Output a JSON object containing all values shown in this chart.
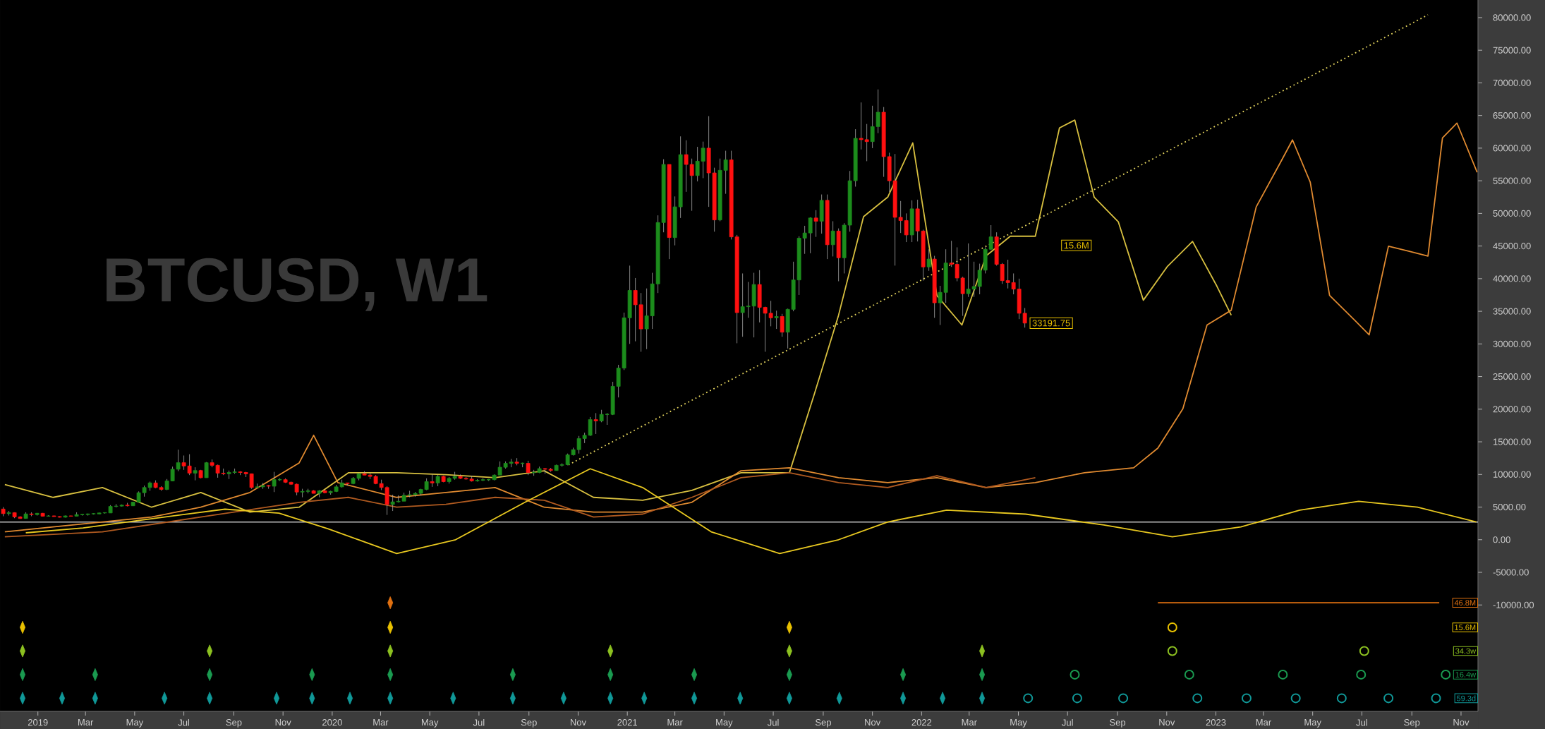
{
  "chart_data": {
    "type": "candlestick",
    "title": "BTCUSD, W1",
    "x": [
      "2018-11-19",
      "2018-11-26",
      "2018-12-03",
      "2018-12-10",
      "2018-12-17",
      "2018-12-24",
      "2018-12-31",
      "2019-01-07",
      "2019-01-14",
      "2019-01-21",
      "2019-01-28",
      "2019-02-04",
      "2019-02-11",
      "2019-02-18",
      "2019-02-25",
      "2019-03-04",
      "2019-03-11",
      "2019-03-18",
      "2019-03-25",
      "2019-04-01",
      "2019-04-08",
      "2019-04-15",
      "2019-04-22",
      "2019-04-29",
      "2019-05-06",
      "2019-05-13",
      "2019-05-20",
      "2019-05-27",
      "2019-06-03",
      "2019-06-10",
      "2019-06-17",
      "2019-06-24",
      "2019-07-01",
      "2019-07-08",
      "2019-07-15",
      "2019-07-22",
      "2019-07-29",
      "2019-08-05",
      "2019-08-12",
      "2019-08-19",
      "2019-08-26",
      "2019-09-02",
      "2019-09-09",
      "2019-09-16",
      "2019-09-23",
      "2019-09-30",
      "2019-10-07",
      "2019-10-14",
      "2019-10-21",
      "2019-10-28",
      "2019-11-04",
      "2019-11-11",
      "2019-11-18",
      "2019-11-25",
      "2019-12-02",
      "2019-12-09",
      "2019-12-16",
      "2019-12-23",
      "2019-12-30",
      "2020-01-06",
      "2020-01-13",
      "2020-01-20",
      "2020-01-27",
      "2020-02-03",
      "2020-02-10",
      "2020-02-17",
      "2020-02-24",
      "2020-03-02",
      "2020-03-09",
      "2020-03-16",
      "2020-03-23",
      "2020-03-30",
      "2020-04-06",
      "2020-04-13",
      "2020-04-20",
      "2020-04-27",
      "2020-05-04",
      "2020-05-11",
      "2020-05-18",
      "2020-05-25",
      "2020-06-01",
      "2020-06-08",
      "2020-06-15",
      "2020-06-22",
      "2020-06-29",
      "2020-07-06",
      "2020-07-13",
      "2020-07-20",
      "2020-07-27",
      "2020-08-03",
      "2020-08-10",
      "2020-08-17",
      "2020-08-24",
      "2020-08-31",
      "2020-09-07",
      "2020-09-14",
      "2020-09-21",
      "2020-09-28",
      "2020-10-05",
      "2020-10-12",
      "2020-10-19",
      "2020-10-26",
      "2020-11-02",
      "2020-11-09",
      "2020-11-16",
      "2020-11-23",
      "2020-11-30",
      "2020-12-07",
      "2020-12-14",
      "2020-12-21",
      "2020-12-28",
      "2021-01-04",
      "2021-01-11",
      "2021-01-18",
      "2021-01-25",
      "2021-02-01",
      "2021-02-08",
      "2021-02-15",
      "2021-02-22",
      "2021-03-01",
      "2021-03-08",
      "2021-03-15",
      "2021-03-22",
      "2021-03-29",
      "2021-04-05",
      "2021-04-12",
      "2021-04-19",
      "2021-04-26",
      "2021-05-03",
      "2021-05-10",
      "2021-05-17",
      "2021-05-24",
      "2021-05-31",
      "2021-06-07",
      "2021-06-14",
      "2021-06-21",
      "2021-06-28",
      "2021-07-05",
      "2021-07-12",
      "2021-07-19",
      "2021-07-26",
      "2021-08-02",
      "2021-08-09",
      "2021-08-16",
      "2021-08-23",
      "2021-08-30",
      "2021-09-06",
      "2021-09-13",
      "2021-09-20",
      "2021-09-27",
      "2021-10-04",
      "2021-10-11",
      "2021-10-18",
      "2021-10-25",
      "2021-11-01",
      "2021-11-08",
      "2021-11-15",
      "2021-11-22",
      "2021-11-29",
      "2021-12-06",
      "2021-12-13",
      "2021-12-20",
      "2021-12-27",
      "2022-01-03",
      "2022-01-10",
      "2022-01-17",
      "2022-01-24",
      "2022-01-31",
      "2022-02-07",
      "2022-02-14",
      "2022-02-21",
      "2022-02-28",
      "2022-03-07",
      "2022-03-14",
      "2022-03-21",
      "2022-03-28",
      "2022-04-04",
      "2022-04-11",
      "2022-04-18",
      "2022-04-25",
      "2022-05-02",
      "2022-05-09"
    ],
    "ohlc": [
      [
        4700,
        5000,
        3600,
        4000
      ],
      [
        4000,
        4400,
        3700,
        4150
      ],
      [
        4150,
        4200,
        3300,
        3500
      ],
      [
        3500,
        3600,
        3200,
        3250
      ],
      [
        3250,
        4200,
        3250,
        3950
      ],
      [
        3950,
        4200,
        3600,
        3850
      ],
      [
        3850,
        4100,
        3700,
        4050
      ],
      [
        4050,
        4100,
        3550,
        3600
      ],
      [
        3600,
        3750,
        3550,
        3650
      ],
      [
        3650,
        3700,
        3500,
        3550
      ],
      [
        3550,
        3600,
        3400,
        3450
      ],
      [
        3450,
        3700,
        3400,
        3650
      ],
      [
        3650,
        3700,
        3550,
        3600
      ],
      [
        3600,
        4200,
        3600,
        3850
      ],
      [
        3850,
        3900,
        3700,
        3850
      ],
      [
        3850,
        4000,
        3700,
        3950
      ],
      [
        3950,
        4050,
        3850,
        4000
      ],
      [
        3950,
        4150,
        3900,
        4100
      ],
      [
        4100,
        4200,
        4000,
        4150
      ],
      [
        4100,
        5300,
        4100,
        5100
      ],
      [
        5100,
        5450,
        4950,
        5150
      ],
      [
        5150,
        5400,
        5100,
        5300
      ],
      [
        5300,
        5650,
        5100,
        5200
      ],
      [
        5200,
        5800,
        5150,
        5750
      ],
      [
        5750,
        7400,
        5750,
        7200
      ],
      [
        7200,
        8300,
        6600,
        8000
      ],
      [
        8000,
        8900,
        7500,
        8700
      ],
      [
        8700,
        9100,
        7900,
        8000
      ],
      [
        8000,
        8200,
        7500,
        7700
      ],
      [
        7700,
        9300,
        7600,
        9000
      ],
      [
        9000,
        11200,
        9000,
        10800
      ],
      [
        10800,
        13800,
        10500,
        11800
      ],
      [
        11800,
        12900,
        10700,
        11300
      ],
      [
        11300,
        13100,
        9900,
        10200
      ],
      [
        10200,
        11100,
        9100,
        10600
      ],
      [
        10600,
        10700,
        9400,
        9500
      ],
      [
        9500,
        11900,
        9500,
        11800
      ],
      [
        11800,
        12300,
        11100,
        11400
      ],
      [
        11400,
        11500,
        9500,
        10200
      ],
      [
        10200,
        10900,
        9900,
        10100
      ],
      [
        10100,
        10600,
        9300,
        10300
      ],
      [
        10300,
        10900,
        10100,
        10400
      ],
      [
        10400,
        10500,
        9900,
        10300
      ],
      [
        10300,
        10400,
        9600,
        10100
      ],
      [
        10100,
        10100,
        7800,
        8000
      ],
      [
        8000,
        8600,
        7900,
        8100
      ],
      [
        8100,
        8700,
        7800,
        8300
      ],
      [
        8300,
        8400,
        7800,
        8200
      ],
      [
        8200,
        10400,
        7300,
        9200
      ],
      [
        9200,
        9400,
        9000,
        9200
      ],
      [
        9200,
        9400,
        8700,
        8800
      ],
      [
        8800,
        8900,
        8400,
        8500
      ],
      [
        8500,
        8600,
        6800,
        7300
      ],
      [
        7300,
        7800,
        6500,
        7400
      ],
      [
        7400,
        7800,
        7100,
        7500
      ],
      [
        7500,
        7600,
        7100,
        7100
      ],
      [
        7100,
        7600,
        6500,
        7500
      ],
      [
        7500,
        7700,
        7100,
        7200
      ],
      [
        7200,
        7500,
        6900,
        7400
      ],
      [
        7400,
        8400,
        7300,
        8100
      ],
      [
        8100,
        9200,
        8000,
        8700
      ],
      [
        8700,
        8700,
        8300,
        8600
      ],
      [
        8600,
        9600,
        8500,
        9400
      ],
      [
        9400,
        10200,
        9100,
        10100
      ],
      [
        10100,
        10500,
        9900,
        9900
      ],
      [
        9900,
        10200,
        9300,
        9700
      ],
      [
        9700,
        9900,
        8500,
        8600
      ],
      [
        8600,
        9200,
        7600,
        8000
      ],
      [
        8000,
        8200,
        3800,
        5400
      ],
      [
        5400,
        6900,
        4400,
        5800
      ],
      [
        5800,
        6800,
        5700,
        5900
      ],
      [
        5900,
        7200,
        5900,
        6800
      ],
      [
        6800,
        7500,
        6500,
        6900
      ],
      [
        6900,
        7300,
        6600,
        7100
      ],
      [
        7100,
        7800,
        6800,
        7700
      ],
      [
        7700,
        9400,
        7600,
        8900
      ],
      [
        8900,
        10000,
        8100,
        8700
      ],
      [
        8700,
        9900,
        8200,
        9700
      ],
      [
        9700,
        9800,
        8800,
        8900
      ],
      [
        8900,
        9600,
        8600,
        9400
      ],
      [
        9400,
        10400,
        9200,
        9700
      ],
      [
        9700,
        10000,
        9300,
        9400
      ],
      [
        9400,
        9600,
        9200,
        9300
      ],
      [
        9300,
        9800,
        8900,
        9000
      ],
      [
        9000,
        9300,
        8900,
        9100
      ],
      [
        9100,
        9400,
        9000,
        9200
      ],
      [
        9200,
        9300,
        9000,
        9200
      ],
      [
        9200,
        10000,
        9100,
        9900
      ],
      [
        9900,
        12000,
        9900,
        11100
      ],
      [
        11100,
        12000,
        10900,
        11700
      ],
      [
        11700,
        12400,
        11100,
        11900
      ],
      [
        11900,
        12500,
        11400,
        11700
      ],
      [
        11700,
        11800,
        11100,
        11700
      ],
      [
        11700,
        12100,
        9900,
        10300
      ],
      [
        10300,
        10700,
        9800,
        10300
      ],
      [
        10300,
        11200,
        10200,
        10900
      ],
      [
        10900,
        11000,
        10100,
        10800
      ],
      [
        10800,
        11000,
        10400,
        10600
      ],
      [
        10600,
        11500,
        10600,
        11400
      ],
      [
        11400,
        11700,
        11200,
        11500
      ],
      [
        11500,
        13200,
        11400,
        13000
      ],
      [
        13000,
        14100,
        12900,
        13800
      ],
      [
        13800,
        15900,
        13200,
        15500
      ],
      [
        15500,
        16400,
        14800,
        16000
      ],
      [
        16000,
        18800,
        15900,
        18400
      ],
      [
        18400,
        19400,
        16200,
        18200
      ],
      [
        18200,
        19900,
        18000,
        19200
      ],
      [
        19200,
        19400,
        17600,
        19200
      ],
      [
        19200,
        24200,
        19100,
        23500
      ],
      [
        23500,
        26800,
        21800,
        26300
      ],
      [
        26300,
        34800,
        26000,
        34000
      ],
      [
        34000,
        42000,
        30000,
        38200
      ],
      [
        38200,
        40100,
        30400,
        36000
      ],
      [
        36000,
        37800,
        28800,
        32300
      ],
      [
        32300,
        38500,
        29200,
        34300
      ],
      [
        34300,
        40900,
        32300,
        39200
      ],
      [
        39200,
        49700,
        37800,
        48600
      ],
      [
        48600,
        58300,
        47100,
        57500
      ],
      [
        57500,
        57500,
        43000,
        46300
      ],
      [
        46300,
        52600,
        45100,
        51000
      ],
      [
        51000,
        61800,
        49300,
        59000
      ],
      [
        59000,
        61200,
        53300,
        57500
      ],
      [
        57500,
        58400,
        50400,
        55800
      ],
      [
        55800,
        60200,
        54900,
        58000
      ],
      [
        58000,
        61000,
        55400,
        60000
      ],
      [
        60000,
        64900,
        51000,
        56200
      ],
      [
        56200,
        57000,
        47200,
        49000
      ],
      [
        49000,
        58400,
        48800,
        56600
      ],
      [
        56600,
        59600,
        53000,
        58200
      ],
      [
        58200,
        59600,
        46000,
        46400
      ],
      [
        46400,
        46700,
        30100,
        34800
      ],
      [
        34800,
        40800,
        31100,
        35700
      ],
      [
        35700,
        39500,
        34000,
        35800
      ],
      [
        35800,
        40900,
        31000,
        39100
      ],
      [
        39100,
        41300,
        33300,
        35600
      ],
      [
        35600,
        35700,
        28800,
        34700
      ],
      [
        34700,
        36600,
        32700,
        34000
      ],
      [
        34000,
        35100,
        32300,
        34200
      ],
      [
        34200,
        34600,
        31100,
        31800
      ],
      [
        31800,
        35400,
        29300,
        35300
      ],
      [
        35300,
        42600,
        35000,
        39800
      ],
      [
        39800,
        46500,
        37500,
        46200
      ],
      [
        46200,
        48100,
        43800,
        47000
      ],
      [
        47000,
        49400,
        43900,
        49300
      ],
      [
        49300,
        50500,
        46400,
        48800
      ],
      [
        48800,
        52900,
        46900,
        52000
      ],
      [
        52000,
        52900,
        43000,
        45200
      ],
      [
        45200,
        48800,
        43400,
        47300
      ],
      [
        47300,
        47700,
        39600,
        43200
      ],
      [
        43200,
        48500,
        40800,
        48200
      ],
      [
        48200,
        56500,
        47200,
        55000
      ],
      [
        55000,
        62900,
        54100,
        61500
      ],
      [
        61500,
        67000,
        59800,
        61300
      ],
      [
        61300,
        63700,
        58000,
        61000
      ],
      [
        61000,
        66500,
        60000,
        63300
      ],
      [
        63300,
        69000,
        62300,
        65500
      ],
      [
        65500,
        66300,
        55600,
        58700
      ],
      [
        58700,
        59300,
        53300,
        55000
      ],
      [
        55000,
        59100,
        42000,
        49400
      ],
      [
        49400,
        51900,
        47000,
        48900
      ],
      [
        48900,
        50000,
        45600,
        46700
      ],
      [
        46700,
        52000,
        45600,
        50700
      ],
      [
        50700,
        52100,
        45700,
        47300
      ],
      [
        47300,
        47500,
        39700,
        41800
      ],
      [
        41800,
        44500,
        41200,
        43000
      ],
      [
        43000,
        43500,
        34000,
        36300
      ],
      [
        36300,
        38900,
        32900,
        37900
      ],
      [
        37900,
        44500,
        36300,
        42400
      ],
      [
        42400,
        45800,
        41800,
        42200
      ],
      [
        42200,
        44800,
        39600,
        40100
      ],
      [
        40100,
        40300,
        34300,
        37700
      ],
      [
        37700,
        45400,
        37200,
        38400
      ],
      [
        38400,
        42600,
        37200,
        38800
      ],
      [
        38800,
        42300,
        37600,
        41300
      ],
      [
        41300,
        44800,
        40800,
        44500
      ],
      [
        44500,
        48200,
        44400,
        46400
      ],
      [
        46400,
        47100,
        42000,
        42200
      ],
      [
        42200,
        42400,
        39200,
        39700
      ],
      [
        39700,
        42900,
        38500,
        39400
      ],
      [
        39400,
        40800,
        37600,
        38400
      ],
      [
        38400,
        40000,
        33800,
        34700
      ],
      [
        34700,
        35500,
        32500,
        33191.75
      ]
    ],
    "series": [
      {
        "type": "line",
        "color": "#d8c040",
        "x": [
          "2018-11-21",
          "2019-01-20",
          "2019-03-22",
          "2019-05-22",
          "2019-07-22",
          "2019-09-21",
          "2019-11-21",
          "2020-01-21",
          "2020-03-21",
          "2020-05-21",
          "2020-07-21",
          "2020-09-20",
          "2020-11-20",
          "2021-01-20",
          "2021-03-22",
          "2021-05-22",
          "2021-07-21",
          "2021-08-21",
          "2021-09-20",
          "2021-10-21",
          "2021-11-20",
          "2021-12-21",
          "2022-01-20",
          "2022-02-20",
          "2022-03-22",
          "2022-04-21",
          "2022-05-22",
          "2022-06-21",
          "2022-07-10",
          "2022-08-03",
          "2022-09-02",
          "2022-10-03",
          "2022-11-02",
          "2022-12-03",
          "2023-01-02",
          "2023-01-20"
        ],
        "values": [
          8450,
          6490,
          8000,
          4980,
          7240,
          4230,
          4980,
          10260,
          10260,
          9960,
          9500,
          10560,
          6490,
          6040,
          7550,
          10260,
          10260,
          22330,
          34400,
          49500,
          52500,
          60800,
          37400,
          32900,
          43500,
          46500,
          46500,
          63100,
          64300,
          52500,
          48700,
          36700,
          41900,
          45700,
          38900,
          34400
        ]
      },
      {
        "type": "line",
        "color": "#e08a30",
        "x": [
          "2018-11-21",
          "2019-01-20",
          "2019-03-22",
          "2019-05-22",
          "2019-07-22",
          "2019-09-21",
          "2019-11-21",
          "2019-12-09",
          "2020-01-08",
          "2020-03-21",
          "2020-05-21",
          "2020-07-21",
          "2020-09-20",
          "2020-11-20",
          "2021-01-20",
          "2021-03-22",
          "2021-05-22",
          "2021-07-21",
          "2021-09-20",
          "2021-11-20",
          "2022-01-20",
          "2022-03-22",
          "2022-05-22",
          "2022-07-22",
          "2022-09-21",
          "2022-10-21",
          "2022-11-21",
          "2022-12-21",
          "2023-01-20",
          "2023-02-20",
          "2023-03-22",
          "2023-04-06",
          "2023-04-28",
          "2023-05-22",
          "2023-06-22",
          "2023-07-10",
          "2023-08-03",
          "2023-08-28",
          "2023-09-21",
          "2023-10-09",
          "2023-10-27",
          "2023-11-21"
        ],
        "values": [
          1210,
          1960,
          2720,
          3470,
          4980,
          7240,
          11770,
          16000,
          8750,
          6490,
          7240,
          8000,
          4980,
          4230,
          4230,
          5730,
          10560,
          11020,
          9500,
          8750,
          9500,
          8000,
          8750,
          10260,
          11020,
          14030,
          20070,
          32900,
          35160,
          51000,
          57800,
          61260,
          54780,
          37420,
          33650,
          31390,
          44970,
          44210,
          43460,
          61570,
          63830,
          56290
        ]
      },
      {
        "type": "line",
        "color": "#b05a20",
        "x": [
          "2018-11-21",
          "2019-03-22",
          "2019-07-22",
          "2019-11-21",
          "2020-01-21",
          "2020-03-21",
          "2020-05-21",
          "2020-07-21",
          "2020-09-20",
          "2020-11-20",
          "2021-01-20",
          "2021-03-22",
          "2021-05-22",
          "2021-07-21",
          "2021-09-20",
          "2021-11-20",
          "2022-01-20",
          "2022-03-22",
          "2022-05-22"
        ],
        "values": [
          450,
          1210,
          3470,
          5730,
          6490,
          4980,
          5430,
          6490,
          6040,
          3470,
          3920,
          6490,
          9500,
          10260,
          8750,
          8000,
          9810,
          8000,
          9500
        ]
      },
      {
        "type": "line",
        "color": "#e8c820",
        "x": [
          "2018-12-17",
          "2019-02-26",
          "2019-05-10",
          "2019-08-21",
          "2019-10-27",
          "2019-12-27",
          "2020-03-21",
          "2020-06-02",
          "2020-08-27",
          "2020-11-16",
          "2021-01-20",
          "2021-04-15",
          "2021-07-09",
          "2021-09-20",
          "2021-11-20",
          "2022-02-01",
          "2022-05-10",
          "2022-08-15",
          "2022-11-08",
          "2023-02-01",
          "2023-04-15",
          "2023-06-27",
          "2023-09-08",
          "2023-11-20"
        ],
        "values": [
          1057,
          1810,
          3020,
          4680,
          4080,
          1660,
          -2110,
          0,
          5730,
          10870,
          8000,
          1210,
          -2110,
          0,
          2720,
          4530,
          3920,
          2260,
          450,
          1960,
          4530,
          5890,
          4980,
          2720
        ]
      },
      {
        "type": "line",
        "color": "#e8d860",
        "line_style": "dotted",
        "x": [
          "2020-10-20",
          "2023-09-21"
        ],
        "values": [
          11470,
          80420
        ]
      },
      {
        "type": "scatter",
        "marker": "diamond",
        "color": "#e07010",
        "x": [
          "2020-03-13"
        ],
        "values": [
          -9660
        ]
      },
      {
        "type": "scatter",
        "marker": "diamond",
        "color": "#e8c000",
        "x": [
          "2018-12-13",
          "2020-03-13",
          "2021-07-21"
        ],
        "values": [
          -13430,
          -13430,
          -13430
        ]
      },
      {
        "type": "scatter",
        "marker": "diamond",
        "color": "#8cc020",
        "x": [
          "2018-12-13",
          "2019-08-02",
          "2020-03-13",
          "2020-12-11",
          "2021-07-21",
          "2022-03-17"
        ],
        "values": [
          -17050,
          -17050,
          -17050,
          -17050,
          -17050,
          -17050
        ]
      },
      {
        "type": "scatter",
        "marker": "diamond",
        "color": "#1a9a50",
        "x": [
          "2018-12-13",
          "2019-03-13",
          "2019-08-02",
          "2019-12-07",
          "2020-03-13",
          "2020-08-12",
          "2020-12-11",
          "2021-03-25",
          "2021-07-21",
          "2021-12-09",
          "2022-03-17"
        ],
        "values": [
          -20670,
          -20670,
          -20670,
          -20670,
          -20670,
          -20670,
          -20670,
          -20670,
          -20670,
          -20670,
          -20670
        ]
      },
      {
        "type": "scatter",
        "marker": "diamond",
        "color": "#109898",
        "x": [
          "2018-12-13",
          "2019-01-31",
          "2019-03-13",
          "2019-06-07",
          "2019-08-02",
          "2019-10-24",
          "2019-12-07",
          "2020-01-23",
          "2020-03-13",
          "2020-05-30",
          "2020-08-12",
          "2020-10-14",
          "2020-12-11",
          "2021-01-22",
          "2021-03-25",
          "2021-05-21",
          "2021-07-21",
          "2021-09-21",
          "2021-12-09",
          "2022-01-27",
          "2022-03-17"
        ],
        "values": [
          -24290,
          -24290,
          -24290,
          -24290,
          -24290,
          -24290,
          -24290,
          -24290,
          -24290,
          -24290,
          -24290,
          -24290,
          -24290,
          -24290,
          -24290,
          -24290,
          -24290,
          -24290,
          -24290,
          -24290,
          -24290
        ]
      },
      {
        "type": "line",
        "name": "46.8M",
        "color": "#e07010",
        "x": [
          "2022-10-21",
          "2023-10-05"
        ],
        "values": [
          -9660,
          -9660
        ]
      },
      {
        "type": "scatter",
        "marker": "circle",
        "name": "15.6M",
        "color": "#e8c000",
        "x": [
          "2022-11-08"
        ],
        "values": [
          -13430
        ]
      },
      {
        "type": "scatter",
        "marker": "circle",
        "name": "34.3w",
        "color": "#8cc020",
        "x": [
          "2022-11-08",
          "2023-07-04"
        ],
        "values": [
          -17050,
          -17050
        ]
      },
      {
        "type": "scatter",
        "marker": "circle",
        "name": "16.4w",
        "color": "#1a9a50",
        "x": [
          "2022-07-10",
          "2022-11-29",
          "2023-03-25",
          "2023-06-30",
          "2023-10-13"
        ],
        "values": [
          -20670,
          -20670,
          -20670,
          -20670,
          -20670
        ]
      },
      {
        "type": "scatter",
        "marker": "circle",
        "name": "59.3d",
        "color": "#109898",
        "x": [
          "2022-05-13",
          "2022-07-13",
          "2022-09-08",
          "2022-12-09",
          "2023-02-08",
          "2023-04-10",
          "2023-06-06",
          "2023-08-03",
          "2023-10-01"
        ],
        "values": [
          -24290,
          -24290,
          -24290,
          -24290,
          -24290,
          -24290,
          -24290,
          -24290,
          -24290
        ]
      }
    ],
    "ref_lines": [
      {
        "axis": "y",
        "value": 2700,
        "color": "#ffffff"
      }
    ],
    "annotations": [
      "15.6M",
      {
        "text": "33191.75",
        "x": "2022-05-09",
        "y": 33191.75
      }
    ],
    "xlim": [
      "2018-11-15",
      "2023-11-22"
    ],
    "ylim": [
      -26300,
      82700
    ],
    "xticks": [
      {
        "value": "2019-01-01",
        "label": "2019"
      },
      {
        "value": "2019-03-01",
        "label": "Mar"
      },
      {
        "value": "2019-05-01",
        "label": "May"
      },
      {
        "value": "2019-07-01",
        "label": "Jul"
      },
      {
        "value": "2019-09-01",
        "label": "Sep"
      },
      {
        "value": "2019-11-01",
        "label": "Nov"
      },
      {
        "value": "2020-01-01",
        "label": "2020"
      },
      {
        "value": "2020-03-01",
        "label": "Mar"
      },
      {
        "value": "2020-05-01",
        "label": "May"
      },
      {
        "value": "2020-07-01",
        "label": "Jul"
      },
      {
        "value": "2020-09-01",
        "label": "Sep"
      },
      {
        "value": "2020-11-01",
        "label": "Nov"
      },
      {
        "value": "2021-01-01",
        "label": "2021"
      },
      {
        "value": "2021-03-01",
        "label": "Mar"
      },
      {
        "value": "2021-05-01",
        "label": "May"
      },
      {
        "value": "2021-07-01",
        "label": "Jul"
      },
      {
        "value": "2021-09-01",
        "label": "Sep"
      },
      {
        "value": "2021-11-01",
        "label": "Nov"
      },
      {
        "value": "2022-01-01",
        "label": "2022"
      },
      {
        "value": "2022-03-01",
        "label": "Mar"
      },
      {
        "value": "2022-05-01",
        "label": "May"
      },
      {
        "value": "2022-07-01",
        "label": "Jul"
      },
      {
        "value": "2022-09-01",
        "label": "Sep"
      },
      {
        "value": "2022-11-01",
        "label": "Nov"
      },
      {
        "value": "2023-01-01",
        "label": "2023"
      },
      {
        "value": "2023-03-01",
        "label": "Mar"
      },
      {
        "value": "2023-05-01",
        "label": "May"
      },
      {
        "value": "2023-07-01",
        "label": "Jul"
      },
      {
        "value": "2023-09-01",
        "label": "Sep"
      },
      {
        "value": "2023-11-01",
        "label": "Nov"
      }
    ],
    "yticks": [
      {
        "value": -10000,
        "label": "-10000.00"
      },
      {
        "value": -5000,
        "label": "-5000.00"
      },
      {
        "value": 0,
        "label": "0.00"
      },
      {
        "value": 5000,
        "label": "5000.00"
      },
      {
        "value": 10000,
        "label": "10000.00"
      },
      {
        "value": 15000,
        "label": "15000.00"
      },
      {
        "value": 20000,
        "label": "20000.00"
      },
      {
        "value": 25000,
        "label": "25000.00"
      },
      {
        "value": 30000,
        "label": "30000.00"
      },
      {
        "value": 35000,
        "label": "35000.00"
      },
      {
        "value": 40000,
        "label": "40000.00"
      },
      {
        "value": 45000,
        "label": "45000.00"
      },
      {
        "value": 50000,
        "label": "50000.00"
      },
      {
        "value": 55000,
        "label": "55000.00"
      },
      {
        "value": 60000,
        "label": "60000.00"
      },
      {
        "value": 65000,
        "label": "65000.00"
      },
      {
        "value": 70000,
        "label": "70000.00"
      },
      {
        "value": 75000,
        "label": "75000.00"
      },
      {
        "value": 80000,
        "label": "80000.00"
      }
    ]
  }
}
